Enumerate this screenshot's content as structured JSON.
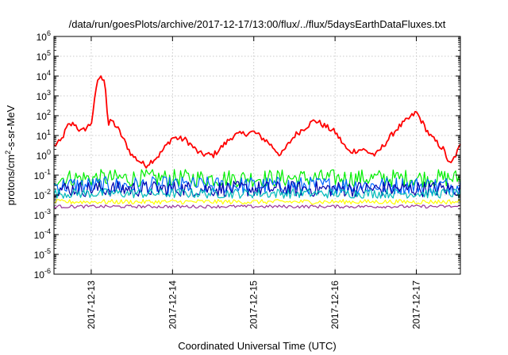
{
  "chart_data": {
    "type": "line",
    "title": "/data/run/goesPlots/archive/2017-12-17/13:00/flux/../flux/5daysEarthDataFluxes.txt",
    "xlabel": "Coordinated Universal Time (UTC)",
    "ylabel": {
      "pre": "protons/cm",
      "sup": "2",
      "post": "-s-sr-MeV"
    },
    "xlim": [
      "2017-12-12T13:00",
      "2017-12-17T13:00"
    ],
    "x_ticks": [
      "2017-12-13",
      "2017-12-14",
      "2017-12-15",
      "2017-12-16",
      "2017-12-17"
    ],
    "y_scale": "log",
    "ylim": [
      1e-06,
      1000000.0
    ],
    "y_ticks": [
      {
        "base": "10",
        "exp": "-6",
        "value": 1e-06
      },
      {
        "base": "10",
        "exp": "-5",
        "value": 1e-05
      },
      {
        "base": "10",
        "exp": "-4",
        "value": 0.0001
      },
      {
        "base": "10",
        "exp": "-3",
        "value": 0.001
      },
      {
        "base": "10",
        "exp": "-2",
        "value": 0.01
      },
      {
        "base": "10",
        "exp": "-1",
        "value": 0.1
      },
      {
        "base": "10",
        "exp": "0",
        "value": 1
      },
      {
        "base": "10",
        "exp": "1",
        "value": 10
      },
      {
        "base": "10",
        "exp": "2",
        "value": 100
      },
      {
        "base": "10",
        "exp": "3",
        "value": 1000
      },
      {
        "base": "10",
        "exp": "4",
        "value": 10000
      },
      {
        "base": "10",
        "exp": "5",
        "value": 100000
      },
      {
        "base": "10",
        "exp": "6",
        "value": 1000000
      }
    ],
    "grid": true,
    "legend": "none",
    "series": [
      {
        "color": "#ff0000",
        "noise": 0.15,
        "x": [
          "2017-12-12T13:00",
          "2017-12-12T15:00",
          "2017-12-12T17:00",
          "2017-12-12T19:00",
          "2017-12-12T21:00",
          "2017-12-13T00:00",
          "2017-12-13T02:00",
          "2017-12-13T04:00",
          "2017-12-13T05:00",
          "2017-12-13T06:00",
          "2017-12-13T08:00",
          "2017-12-13T12:00",
          "2017-12-13T16:00",
          "2017-12-13T20:00",
          "2017-12-14T00:00",
          "2017-12-14T04:00",
          "2017-12-14T08:00",
          "2017-12-14T12:00",
          "2017-12-14T18:00",
          "2017-12-15T00:00",
          "2017-12-15T04:00",
          "2017-12-15T08:00",
          "2017-12-15T12:00",
          "2017-12-15T18:00",
          "2017-12-16T00:00",
          "2017-12-16T04:00",
          "2017-12-16T08:00",
          "2017-12-16T12:00",
          "2017-12-16T18:00",
          "2017-12-17T00:00",
          "2017-12-17T04:00",
          "2017-12-17T08:00",
          "2017-12-17T10:00",
          "2017-12-17T13:00"
        ],
        "y": [
          3,
          5,
          30,
          40,
          15,
          40,
          8000,
          8000,
          30,
          60,
          20,
          1,
          0.3,
          1,
          8,
          6,
          1.2,
          1,
          10,
          15,
          5,
          1,
          10,
          60,
          15,
          1.5,
          2,
          1,
          20,
          150,
          10,
          2,
          0.3,
          3
        ]
      },
      {
        "color": "#00ee00",
        "noise": 0.45,
        "x": [
          "2017-12-12T13:00",
          "2017-12-17T13:00"
        ],
        "y": [
          0.07,
          0.07
        ]
      },
      {
        "color": "#0066ff",
        "noise": 0.45,
        "x": [
          "2017-12-12T13:00",
          "2017-12-17T13:00"
        ],
        "y": [
          0.03,
          0.03
        ]
      },
      {
        "color": "#0000aa",
        "noise": 0.4,
        "x": [
          "2017-12-12T13:00",
          "2017-12-17T13:00"
        ],
        "y": [
          0.02,
          0.02
        ]
      },
      {
        "color": "#00bbbb",
        "noise": 0.25,
        "x": [
          "2017-12-12T13:00",
          "2017-12-17T13:00"
        ],
        "y": [
          0.012,
          0.012
        ]
      },
      {
        "color": "#ffff00",
        "noise": 0.12,
        "x": [
          "2017-12-12T13:00",
          "2017-12-17T13:00"
        ],
        "y": [
          0.0045,
          0.0045
        ]
      },
      {
        "color": "#993399",
        "noise": 0.08,
        "x": [
          "2017-12-12T13:00",
          "2017-12-17T13:00"
        ],
        "y": [
          0.0026,
          0.0026
        ]
      }
    ]
  }
}
